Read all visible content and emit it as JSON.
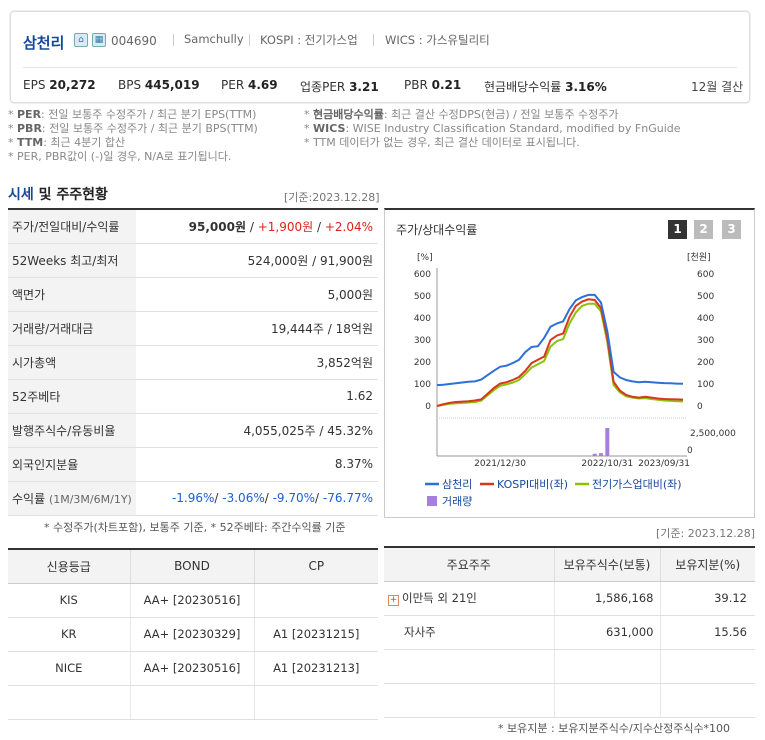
{
  "header": {
    "name": "삼천리",
    "code": "004690",
    "eng_name": "Samchully",
    "market": "KOSPI : 전기가스업",
    "wics": "WICS : 가스유틸리티",
    "stats": [
      {
        "label": "EPS",
        "value": "20,272"
      },
      {
        "label": "BPS",
        "value": "445,019"
      },
      {
        "label": "PER",
        "value": "4.69"
      },
      {
        "label": "업종PER",
        "value": "3.21"
      },
      {
        "label": "PBR",
        "value": "0.21"
      },
      {
        "label": "현금배당수익률",
        "value": "3.16%"
      }
    ],
    "settle": "12월 결산"
  },
  "notes_left": [
    {
      "b": "PER",
      "t": ": 전일 보통주 수정주가 / 최근 분기 EPS(TTM)"
    },
    {
      "b": "PBR",
      "t": ": 전일 보통주 수정주가 / 최근 분기 BPS(TTM)"
    },
    {
      "b": "TTM",
      "t": ": 최근 4분기 합산"
    },
    {
      "b": "",
      "t": "PER, PBR값이 (-)일 경우, N/A로 표기됩니다."
    }
  ],
  "notes_right": [
    {
      "b": "현금배당수익률",
      "t": ": 최근 결산 수정DPS(현금) / 전일 보통주 수정주가"
    },
    {
      "b": "WICS",
      "t": ": WISE Industry Classification Standard, modified by FnGuide"
    },
    {
      "b": "",
      "t": "TTM 데이터가 없는 경우, 최근 결산 데이터로 표시됩니다."
    }
  ],
  "section": {
    "title_a": "시세",
    "title_b": " 및 주주현황",
    "base": "[기준:2023.12.28]"
  },
  "market_rows": [
    {
      "k": "주가/전일대비/수익률",
      "price": "95,000원",
      "chg": "+1,900원",
      "rate": "+2.04%"
    },
    {
      "k": "52Weeks 최고/최저",
      "v": "524,000원 / 91,900원"
    },
    {
      "k": "액면가",
      "v": "5,000원"
    },
    {
      "k": "거래량/거래대금",
      "v": "19,444주 / 18억원"
    },
    {
      "k": "시가총액",
      "v": "3,852억원"
    },
    {
      "k": "52주베타",
      "v": "1.62"
    },
    {
      "k": "발행주식수/유동비율",
      "v": "4,055,025주 / 45.32%"
    },
    {
      "k": "외국인지분율",
      "v": "8.37%"
    },
    {
      "k": "수익률",
      "k2": "(1M/3M/6M/1Y)",
      "rets": [
        "-1.96%",
        "-3.06%",
        "-9.70%",
        "-76.77%"
      ]
    }
  ],
  "footnote1": "* 수정주가(차트포함), 보통주 기준, * 52주베타: 주간수익률 기준",
  "chart_box": {
    "title": "주가/상대수익률",
    "pages": [
      "1",
      "2",
      "3"
    ]
  },
  "chart_data": {
    "type": "line",
    "x_ticks": [
      "2021/12/30",
      "2022/10/31",
      "2023/09/31"
    ],
    "left_unit": "[%]",
    "right_unit": "[천원]",
    "y_ticks": [
      "600",
      "500",
      "400",
      "300",
      "200",
      "100",
      "0"
    ],
    "ylim": [
      0,
      600
    ],
    "vol_tick": "2,500,000",
    "series": [
      {
        "name": "삼천리",
        "color": "#2f6fd8",
        "values": [
          95,
          97,
          100,
          103,
          107,
          110,
          112,
          120,
          140,
          160,
          178,
          183,
          195,
          210,
          245,
          268,
          272,
          310,
          360,
          375,
          385,
          440,
          480,
          495,
          505,
          505,
          470,
          340,
          155,
          130,
          118,
          112,
          108,
          110,
          108,
          106,
          104,
          103,
          102,
          101
        ]
      },
      {
        "name": "KOSPI대비(좌)",
        "color": "#d6371e",
        "values": [
          0,
          8,
          14,
          18,
          20,
          22,
          25,
          30,
          55,
          82,
          102,
          108,
          118,
          132,
          160,
          195,
          210,
          225,
          300,
          320,
          330,
          405,
          455,
          475,
          485,
          482,
          445,
          310,
          110,
          70,
          50,
          42,
          38,
          42,
          38,
          34,
          32,
          31,
          30,
          29
        ]
      },
      {
        "name": "전기가스업대비(좌)",
        "color": "#8bc20b",
        "values": [
          0,
          5,
          10,
          12,
          14,
          16,
          18,
          24,
          48,
          72,
          92,
          98,
          106,
          118,
          145,
          175,
          190,
          205,
          270,
          295,
          305,
          375,
          425,
          455,
          465,
          465,
          430,
          290,
          95,
          62,
          44,
          38,
          34,
          36,
          32,
          28,
          25,
          24,
          22,
          21
        ]
      }
    ],
    "volume": {
      "name": "거래량",
      "color": "#a77de0",
      "values": [
        0,
        0,
        0,
        0,
        0,
        0,
        0,
        0,
        0,
        0,
        0,
        0,
        0,
        0,
        0,
        0,
        0,
        0,
        0,
        0,
        0,
        0,
        0,
        0,
        0,
        0.08,
        0.1,
        1,
        0,
        0,
        0,
        0,
        0,
        0,
        0,
        0,
        0,
        0,
        0,
        0
      ]
    }
  },
  "base2": "[기준: 2023.12.28]",
  "credit": {
    "headers": [
      "신용등급",
      "BOND",
      "CP"
    ],
    "rows": [
      [
        "KIS",
        "AA+ [20230516]",
        ""
      ],
      [
        "KR",
        "AA+ [20230329]",
        "A1 [20231215]"
      ],
      [
        "NICE",
        "AA+ [20230516]",
        "A1 [20231213]"
      ]
    ]
  },
  "holders": {
    "headers": [
      "주요주주",
      "보유주식수(보통)",
      "보유지분(%)"
    ],
    "rows": [
      {
        "name": "이만득 외 21인",
        "shares": "1,586,168",
        "pct": "39.12"
      },
      {
        "name": "자사주",
        "shares": "631,000",
        "pct": "15.56"
      }
    ],
    "footnote": "* 보유지분 : 보유지분주식수/지수산정주식수*100"
  }
}
